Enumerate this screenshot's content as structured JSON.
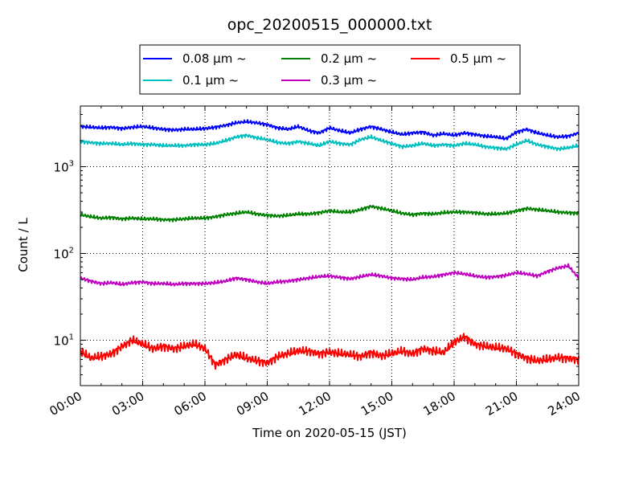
{
  "chart_data": {
    "type": "line",
    "title": "opc_20200515_000000.txt",
    "xlabel": "Time on 2020-05-15 (JST)",
    "ylabel": "Count / L",
    "y_scale": "log",
    "ylim": [
      3,
      5000
    ],
    "xlim": [
      "2020-05-15 00:00",
      "2020-05-16 00:00"
    ],
    "x_ticks": [
      "00:00",
      "03:00",
      "06:00",
      "09:00",
      "12:00",
      "15:00",
      "18:00",
      "21:00",
      "24:00"
    ],
    "y_ticks": [
      {
        "value": 10,
        "base": "10",
        "exp": "1"
      },
      {
        "value": 100,
        "base": "10",
        "exp": "2"
      },
      {
        "value": 1000,
        "base": "10",
        "exp": "3"
      }
    ],
    "grid": true,
    "legend_position": "top-center",
    "x": [
      "00:00",
      "00:30",
      "01:00",
      "01:30",
      "02:00",
      "02:30",
      "03:00",
      "03:30",
      "04:00",
      "04:30",
      "05:00",
      "05:30",
      "06:00",
      "06:30",
      "07:00",
      "07:30",
      "08:00",
      "08:30",
      "09:00",
      "09:30",
      "10:00",
      "10:30",
      "11:00",
      "11:30",
      "12:00",
      "12:30",
      "13:00",
      "13:30",
      "14:00",
      "14:30",
      "15:00",
      "15:30",
      "16:00",
      "16:30",
      "17:00",
      "17:30",
      "18:00",
      "18:30",
      "19:00",
      "19:30",
      "20:00",
      "20:30",
      "21:00",
      "21:30",
      "22:00",
      "22:30",
      "23:00",
      "23:30",
      "24:00"
    ],
    "series": [
      {
        "name": "0.08 μm ~",
        "color": "#0000ff",
        "values": [
          2900,
          2850,
          2800,
          2850,
          2750,
          2850,
          2900,
          2800,
          2700,
          2650,
          2700,
          2700,
          2750,
          2850,
          3000,
          3200,
          3300,
          3200,
          3050,
          2800,
          2700,
          2900,
          2600,
          2450,
          2800,
          2600,
          2450,
          2700,
          2900,
          2700,
          2500,
          2350,
          2450,
          2500,
          2300,
          2400,
          2300,
          2450,
          2350,
          2250,
          2200,
          2100,
          2500,
          2700,
          2450,
          2300,
          2200,
          2250,
          2450
        ]
      },
      {
        "name": "0.1 μm ~",
        "color": "#00bfbf",
        "values": [
          1950,
          1900,
          1850,
          1850,
          1800,
          1850,
          1800,
          1800,
          1750,
          1750,
          1750,
          1800,
          1800,
          1850,
          2000,
          2200,
          2300,
          2150,
          2050,
          1900,
          1850,
          1950,
          1850,
          1750,
          1950,
          1850,
          1800,
          2050,
          2200,
          2000,
          1850,
          1700,
          1750,
          1850,
          1750,
          1800,
          1750,
          1850,
          1800,
          1700,
          1650,
          1600,
          1800,
          2000,
          1800,
          1700,
          1600,
          1650,
          1750
        ]
      },
      {
        "name": "0.2 μm ~",
        "color": "#008000",
        "values": [
          280,
          265,
          255,
          260,
          250,
          255,
          250,
          250,
          245,
          245,
          250,
          255,
          255,
          265,
          280,
          290,
          300,
          285,
          275,
          270,
          275,
          285,
          285,
          295,
          310,
          300,
          300,
          320,
          350,
          330,
          310,
          290,
          280,
          290,
          285,
          295,
          300,
          300,
          295,
          285,
          285,
          290,
          310,
          330,
          320,
          310,
          300,
          295,
          290
        ]
      },
      {
        "name": "0.3 μm ~",
        "color": "#bf00bf",
        "values": [
          52,
          48,
          45,
          46,
          44,
          46,
          47,
          45,
          45,
          44,
          45,
          45,
          45,
          46,
          48,
          52,
          50,
          47,
          45,
          47,
          48,
          50,
          52,
          54,
          55,
          53,
          51,
          54,
          57,
          55,
          52,
          51,
          50,
          53,
          54,
          57,
          60,
          58,
          55,
          53,
          54,
          56,
          60,
          58,
          55,
          62,
          68,
          72,
          52
        ]
      },
      {
        "name": "0.5 μm ~",
        "color": "#ff0000",
        "values": [
          7.5,
          6.2,
          6.5,
          7.0,
          8.5,
          10.0,
          9.0,
          8.0,
          8.5,
          8.0,
          8.5,
          9.0,
          8.0,
          5.2,
          6.0,
          6.8,
          6.2,
          5.8,
          5.5,
          6.5,
          7.0,
          7.5,
          7.5,
          7.0,
          7.3,
          7.0,
          6.8,
          6.5,
          7.2,
          6.6,
          7.0,
          7.5,
          7.0,
          8.0,
          7.5,
          7.2,
          9.5,
          11.0,
          9.0,
          8.5,
          8.2,
          8.0,
          7.0,
          6.2,
          5.8,
          6.0,
          6.3,
          6.2,
          6.0
        ]
      }
    ]
  }
}
